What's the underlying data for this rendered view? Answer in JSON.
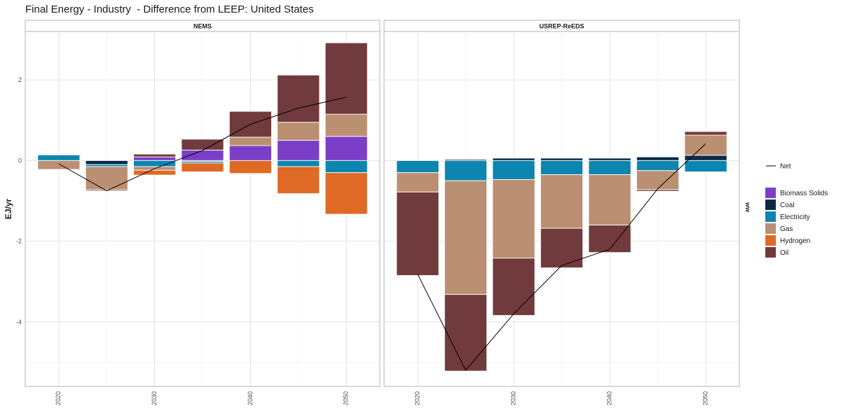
{
  "title": "Final Energy - Industry  - Difference from LEEP: United States",
  "colors": {
    "Biomass Solids": "#7b3fc7",
    "Coal": "#0d2a45",
    "Electricity": "#0c86b0",
    "Gas": "#bb8f72",
    "Hydrogen": "#de6a26",
    "Oil": "#713b3d",
    "Net": "#000000"
  },
  "chart_data": {
    "type": "bar",
    "stacked": true,
    "ylabel": "EJ/yr",
    "xlabel": "",
    "ylim": [
      -5.6,
      3.2
    ],
    "yticks": [
      -4,
      -2,
      0,
      2
    ],
    "xticks": [
      2020,
      2030,
      2040,
      2050
    ],
    "xlim": [
      2016.5,
      2053.5
    ],
    "grid": true,
    "legend_position": "right",
    "legend_line_label": "Net",
    "legend_strip_label": "ww",
    "categories": [
      "Biomass Solids",
      "Coal",
      "Electricity",
      "Gas",
      "Hydrogen",
      "Oil"
    ],
    "panels": [
      {
        "name": "NEMS",
        "x": [
          2020,
          2025,
          2030,
          2035,
          2040,
          2045,
          2050
        ],
        "series": [
          {
            "name": "Biomass Solids",
            "values": [
              0,
              0,
              0.09,
              0.26,
              0.37,
              0.5,
              0.6
            ]
          },
          {
            "name": "Coal",
            "values": [
              0,
              -0.1,
              0,
              -0.02,
              0,
              0,
              0
            ]
          },
          {
            "name": "Electricity",
            "values": [
              0.14,
              -0.05,
              -0.15,
              -0.04,
              0,
              -0.15,
              -0.3
            ]
          },
          {
            "name": "Gas",
            "values": [
              -0.22,
              -0.57,
              -0.09,
              0,
              0.21,
              0.45,
              0.55
            ]
          },
          {
            "name": "Hydrogen",
            "values": [
              0,
              0,
              -0.12,
              -0.22,
              -0.32,
              -0.67,
              -1.03
            ]
          },
          {
            "name": "Oil",
            "values": [
              0,
              -0.03,
              0.07,
              0.27,
              0.64,
              1.17,
              1.77
            ]
          }
        ],
        "net": [
          -0.08,
          -0.75,
          -0.2,
          0.25,
          0.9,
          1.3,
          1.57
        ]
      },
      {
        "name": "USREP-ReEDS",
        "x": [
          2020,
          2025,
          2030,
          2035,
          2040,
          2045,
          2050
        ],
        "series": [
          {
            "name": "Biomass Solids",
            "values": [
              0,
              0,
              0,
              0,
              0,
              0,
              0
            ]
          },
          {
            "name": "Coal",
            "values": [
              0,
              0.03,
              0.06,
              0.06,
              0.06,
              0.09,
              0.13
            ]
          },
          {
            "name": "Electricity",
            "values": [
              -0.3,
              -0.5,
              -0.47,
              -0.35,
              -0.35,
              -0.25,
              -0.28
            ]
          },
          {
            "name": "Gas",
            "values": [
              -0.48,
              -2.82,
              -1.95,
              -1.33,
              -1.25,
              -0.47,
              0.5
            ]
          },
          {
            "name": "Hydrogen",
            "values": [
              0,
              0,
              0,
              0,
              0,
              0,
              0
            ]
          },
          {
            "name": "Oil",
            "values": [
              -2.07,
              -1.9,
              -1.42,
              -0.98,
              -0.68,
              -0.04,
              0.09
            ]
          }
        ],
        "net": [
          -2.82,
          -5.2,
          -3.8,
          -2.6,
          -2.2,
          -0.7,
          0.42
        ]
      }
    ]
  }
}
